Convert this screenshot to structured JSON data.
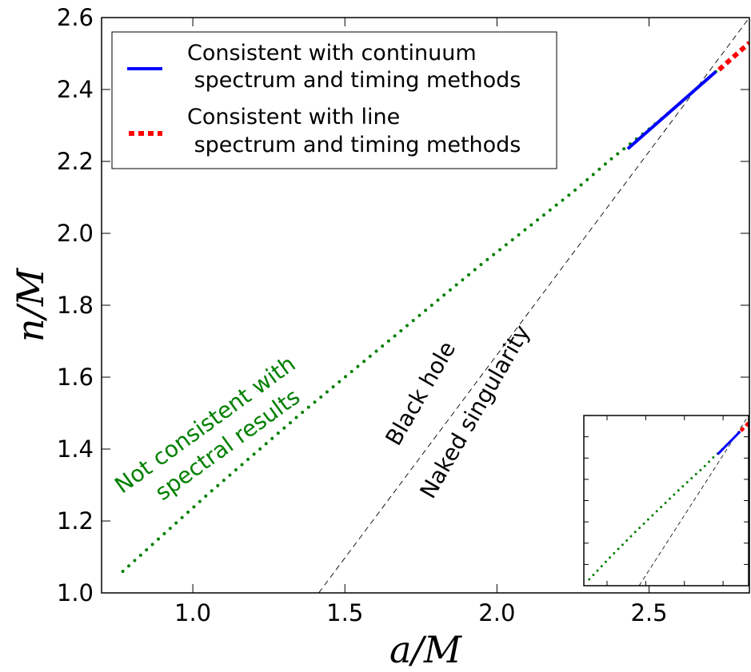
{
  "chart_data": {
    "type": "line",
    "xlabel": "a/M",
    "ylabel": "n/M",
    "xlim": [
      0.7,
      2.83
    ],
    "ylim": [
      1.0,
      2.6
    ],
    "xticks": [
      1.0,
      1.5,
      2.0,
      2.5
    ],
    "xtick_labels": [
      "1.0",
      "1.5",
      "2.0",
      "2.5"
    ],
    "yticks": [
      1.0,
      1.2,
      1.4,
      1.6,
      1.8,
      2.0,
      2.2,
      2.4,
      2.6
    ],
    "ytick_labels": [
      "1.0",
      "1.2",
      "1.4",
      "1.6",
      "1.8",
      "2.0",
      "2.2",
      "2.4",
      "2.6"
    ],
    "series": [
      {
        "style": "dotted",
        "color": "#008000",
        "x": [
          0.77,
          0.9,
          1.05,
          1.2,
          1.35,
          1.5,
          1.65,
          1.8,
          1.95,
          2.1,
          2.25,
          2.38,
          2.5,
          2.6,
          2.72
        ],
        "y": [
          1.06,
          1.16,
          1.275,
          1.385,
          1.495,
          1.6,
          1.705,
          1.81,
          1.915,
          2.015,
          2.115,
          2.21,
          2.29,
          2.36,
          2.45
        ]
      },
      {
        "name": "Consistent with continuum\n spectrum and timing methods",
        "style": "solid",
        "color": "#0000ff",
        "x": [
          2.43,
          2.72
        ],
        "y": [
          2.235,
          2.45
        ]
      },
      {
        "name": "Consistent with line\n spectrum and timing methods",
        "style": "dashed",
        "color": "#ff0000",
        "x": [
          2.73,
          2.83
        ],
        "y": [
          2.455,
          2.53
        ]
      },
      {
        "style": "thin-dashed",
        "color": "#000000",
        "x": [
          1.414,
          2.83
        ],
        "y": [
          1.0,
          2.6
        ]
      }
    ],
    "legend": {
      "position": "upper left",
      "entries": [
        {
          "line1": "Consistent with continuum",
          "line2": " spectrum and timing methods"
        },
        {
          "line1": "Consistent with line",
          "line2": " spectrum and timing methods"
        }
      ]
    },
    "annotations": [
      {
        "line1": "Not consistent with",
        "line2": "spectral results",
        "color": "#008000",
        "x": 0.95,
        "y": 1.45
      },
      {
        "text": "Black hole",
        "color": "#000000",
        "x": 1.67,
        "y": 1.55
      },
      {
        "text": "Naked singularity",
        "color": "#000000",
        "x": 1.92,
        "y": 1.52
      }
    ],
    "inset": {
      "xlim": [
        0.7,
        2.83
      ],
      "ylim": [
        1.0,
        2.6
      ]
    },
    "grid": false
  }
}
